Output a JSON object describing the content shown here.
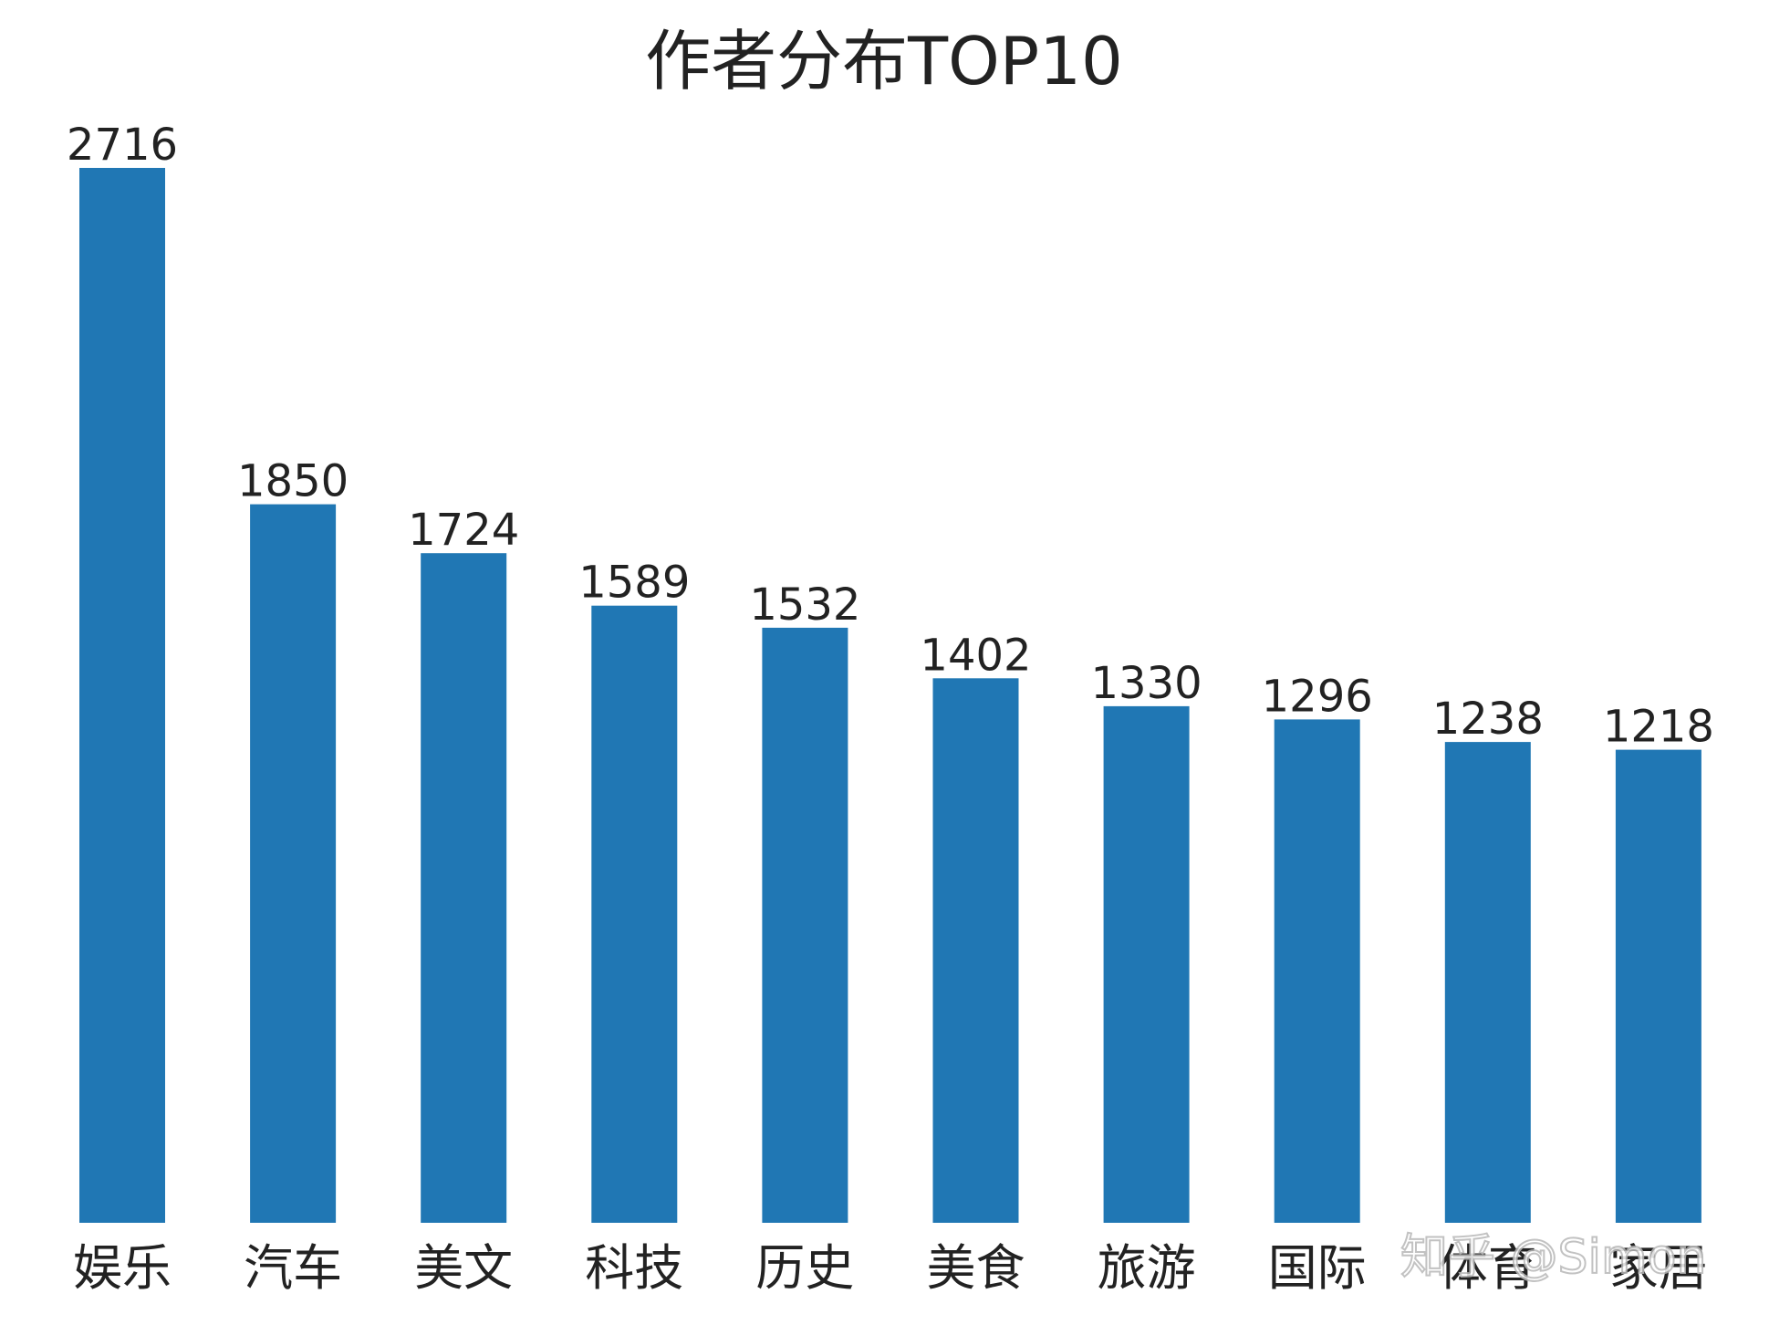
{
  "chart_data": {
    "type": "bar",
    "title": "作者分布TOP10",
    "xlabel": "",
    "ylabel": "",
    "categories": [
      "娱乐",
      "汽车",
      "美文",
      "科技",
      "历史",
      "美食",
      "旅游",
      "国际",
      "体育",
      "家居"
    ],
    "values": [
      2716,
      1850,
      1724,
      1589,
      1532,
      1402,
      1330,
      1296,
      1238,
      1218
    ],
    "ylim": [
      0,
      2716
    ],
    "grid": false,
    "show_y_axis": false,
    "data_labels": true,
    "bar_color": "#2077b4"
  },
  "watermark": "知乎 @Simon",
  "colors": {
    "bar": "#2077b4",
    "text": "#222222",
    "background": "#ffffff"
  }
}
